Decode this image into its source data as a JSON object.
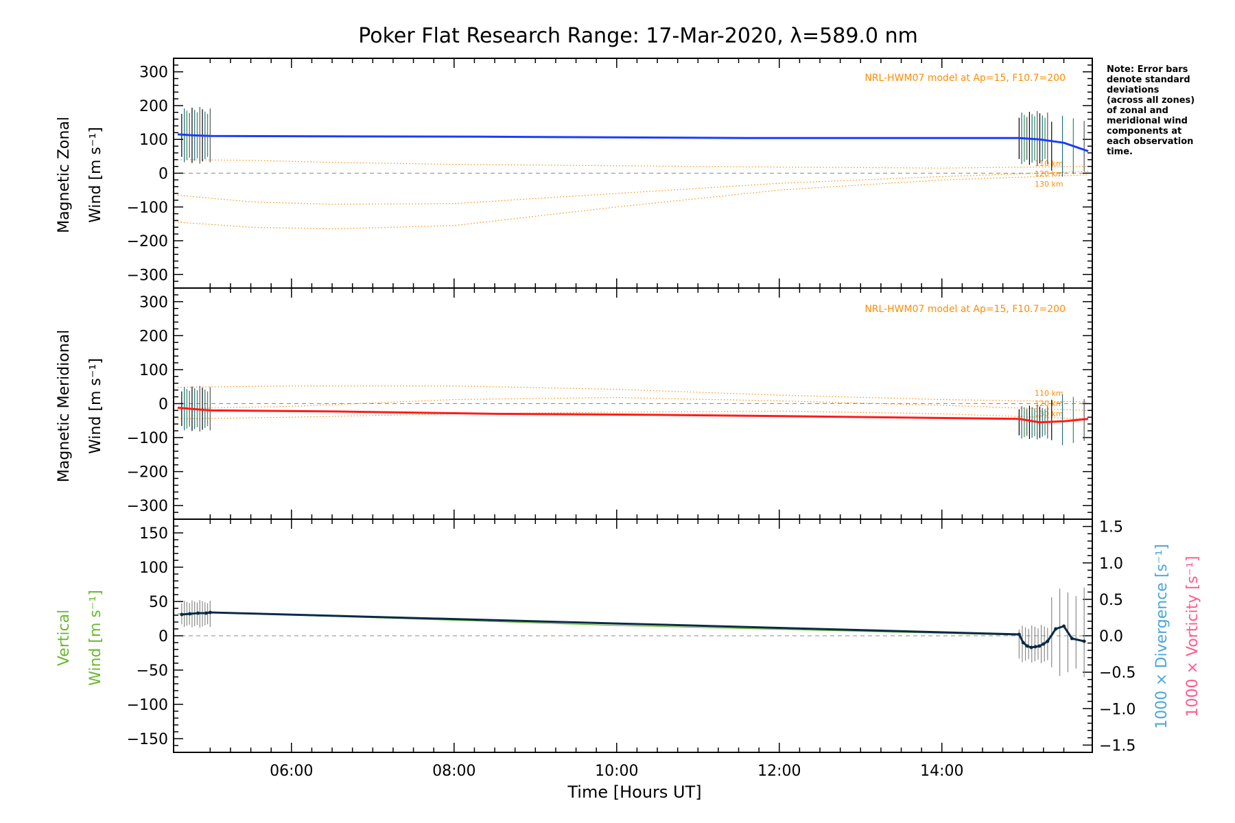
{
  "title": "Poker Flat Research Range: 17-Mar-2020, λ=589.0 nm",
  "note_lines": [
    "Note: Error bars",
    "denote standard",
    "deviations",
    "(across all zones)",
    "of zonal and",
    "meridional wind",
    "components at",
    "each observation",
    "time."
  ],
  "xaxis": {
    "label": "Time [Hours UT]",
    "ticks": [
      {
        "v": 6,
        "label": "06:00"
      },
      {
        "v": 8,
        "label": "08:00"
      },
      {
        "v": 10,
        "label": "10:00"
      },
      {
        "v": 12,
        "label": "12:00"
      },
      {
        "v": 14,
        "label": "14:00"
      }
    ]
  },
  "chart_data": [
    {
      "type": "line",
      "ylabel_top": "Magnetic Zonal",
      "ylabel_bottom": "Wind [m s⁻¹]",
      "xlim": [
        4.55,
        15.85
      ],
      "ylim": [
        -340,
        340
      ],
      "yticks": [
        300,
        200,
        100,
        0,
        -100,
        -200,
        -300
      ],
      "model_label": "NRL-HWM07 model at Ap=15, F10.7=200",
      "model_altitudes": [
        "110 km",
        "120 km",
        "130 km"
      ],
      "series": [
        {
          "color": "#1a3cff",
          "x": [
            4.6,
            4.8,
            5.0,
            8.3,
            11.6,
            14.95,
            15.2,
            15.5,
            15.8
          ],
          "y": [
            115,
            112,
            110,
            108,
            104,
            104,
            100,
            90,
            65
          ]
        }
      ],
      "model_curves": [
        {
          "x": [
            4.6,
            5.5,
            6.5,
            8,
            10,
            12,
            14,
            15.8
          ],
          "y": [
            40,
            38,
            32,
            26,
            22,
            18,
            15,
            20
          ]
        },
        {
          "x": [
            4.6,
            5.5,
            6.5,
            8,
            10,
            12,
            14,
            15.8
          ],
          "y": [
            -65,
            -85,
            -92,
            -90,
            -60,
            -30,
            -10,
            5
          ]
        },
        {
          "x": [
            4.6,
            5.5,
            6.5,
            8,
            10,
            12,
            14,
            15.8
          ],
          "y": [
            -145,
            -160,
            -165,
            -155,
            -100,
            -50,
            -20,
            -5
          ]
        }
      ],
      "error_bar_clusters": [
        {
          "x_start": 4.65,
          "x_end": 5.0,
          "count": 12,
          "center": 112,
          "halfwidth": 75
        },
        {
          "x_start": 14.95,
          "x_end": 15.3,
          "count": 12,
          "center": 103,
          "halfwidth": 72
        },
        {
          "x_start": 15.35,
          "x_end": 15.75,
          "count": 4,
          "center": 80,
          "halfwidth": 85
        }
      ],
      "zero_line": true
    },
    {
      "type": "line",
      "ylabel_top": "Magnetic Meridional",
      "ylabel_bottom": "Wind [m s⁻¹]",
      "xlim": [
        4.55,
        15.85
      ],
      "ylim": [
        -340,
        340
      ],
      "yticks": [
        300,
        200,
        100,
        0,
        -100,
        -200,
        -300
      ],
      "model_label": "NRL-HWM07 model at Ap=15, F10.7=200",
      "model_altitudes": [
        "110 km",
        "120 km",
        "130 km"
      ],
      "series": [
        {
          "color": "#ff1a1a",
          "x": [
            4.6,
            5.0,
            6.5,
            8.5,
            10.5,
            12.5,
            14.95,
            15.2,
            15.5,
            15.8
          ],
          "y": [
            -12,
            -20,
            -23,
            -30,
            -33,
            -38,
            -45,
            -55,
            -52,
            -45
          ]
        }
      ],
      "model_curves": [
        {
          "x": [
            4.6,
            6,
            8,
            10,
            12,
            14,
            15.8
          ],
          "y": [
            48,
            52,
            52,
            42,
            25,
            12,
            5
          ]
        },
        {
          "x": [
            4.6,
            6,
            8,
            10,
            12,
            14,
            15.8
          ],
          "y": [
            -15,
            -8,
            12,
            18,
            8,
            -5,
            -20
          ]
        },
        {
          "x": [
            4.6,
            6,
            8,
            10,
            12,
            14,
            15.8
          ],
          "y": [
            -45,
            -40,
            -30,
            -25,
            -22,
            -30,
            -45
          ]
        }
      ],
      "error_bar_clusters": [
        {
          "x_start": 4.65,
          "x_end": 5.0,
          "count": 12,
          "center": -15,
          "halfwidth": 60
        },
        {
          "x_start": 14.95,
          "x_end": 15.3,
          "count": 12,
          "center": -55,
          "halfwidth": 45
        },
        {
          "x_start": 15.35,
          "x_end": 15.75,
          "count": 4,
          "center": -48,
          "halfwidth": 70
        }
      ],
      "zero_line": true
    },
    {
      "type": "line",
      "ylabel_top": "Vertical",
      "ylabel_bottom": "Wind [m s⁻¹]",
      "ylabel_color": "#6ab82e",
      "xlim": [
        4.55,
        15.85
      ],
      "ylim": [
        -170,
        170
      ],
      "yticks": [
        150,
        100,
        50,
        0,
        -50,
        -100,
        -150
      ],
      "y2lim": [
        -1.6,
        1.6
      ],
      "y2ticks": [
        1.5,
        1.0,
        0.5,
        0.0,
        -0.5,
        -1.0,
        -1.5
      ],
      "y2tick_labels": [
        "1.5",
        "1.0",
        "0.5",
        "0.0",
        "−0.5",
        "−1.0",
        "−1.5"
      ],
      "y2label_divergence": "1000 × Divergence [s⁻¹]",
      "y2label_vorticity": "1000 × Vorticity [s⁻¹]",
      "series": [
        {
          "name": "",
          "color": "#6ab82e",
          "x": [
            4.6,
            5.0,
            10.0,
            14.95
          ],
          "y": [
            32,
            34,
            15,
            1
          ]
        },
        {
          "name": "",
          "color": "#0a2a44",
          "x": [
            4.65,
            4.75,
            4.85,
            4.95,
            5.0,
            14.95,
            15.0,
            15.05,
            15.1,
            15.15,
            15.2,
            15.25,
            15.3,
            15.4,
            15.5,
            15.6,
            15.75
          ],
          "y": [
            31,
            32,
            33,
            33,
            34,
            2,
            -10,
            -15,
            -17,
            -16,
            -15,
            -12,
            -8,
            10,
            14,
            -4,
            -8
          ]
        }
      ],
      "error_bar_clusters": [
        {
          "x_start": 4.65,
          "x_end": 5.0,
          "count": 12,
          "center": 32,
          "halfwidth": 18
        },
        {
          "x_start": 14.95,
          "x_end": 15.3,
          "count": 10,
          "center": -12,
          "halfwidth": 25
        },
        {
          "x_start": 15.35,
          "x_end": 15.75,
          "count": 5,
          "center": 5,
          "halfwidth": 60
        }
      ],
      "zero_line": true
    }
  ]
}
